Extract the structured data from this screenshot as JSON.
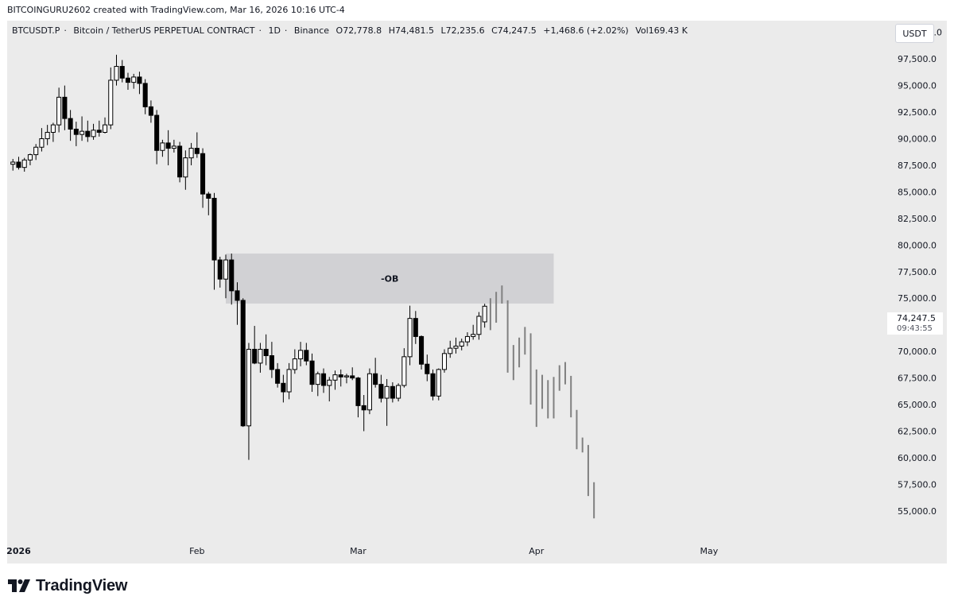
{
  "attribution": "BITCOINGURU2602 created with TradingView.com, Mar 16, 2026 10:16 UTC-4",
  "symbol": {
    "name": "BTCUSDT.P",
    "description": "Bitcoin / TetherUS PERPETUAL CONTRACT",
    "interval": "1D",
    "exchange": "Binance",
    "open": "O72,778.8",
    "high": "H74,481.5",
    "low": "L72,235.6",
    "close": "C74,247.5",
    "change": "+1,468.6 (+2.02%)",
    "volume": "Vol169.43 K"
  },
  "currency_button": "USDT",
  "last_price": {
    "price": "74,247.5",
    "countdown": "09:43:55"
  },
  "logo_text": "TradingView",
  "colors": {
    "background": "#ebebeb",
    "up_body": "#ffffff",
    "down_body": "#000000",
    "wick": "#000000",
    "projection": "#808080",
    "zone": "#d1d1d4"
  },
  "chart_data": {
    "type": "candlestick",
    "y_axis_ticks": [
      "100,000.0",
      "97,500.0",
      "95,000.0",
      "92,500.0",
      "90,000.0",
      "87,500.0",
      "85,000.0",
      "82,500.0",
      "80,000.0",
      "77,500.0",
      "75,000.0",
      "72,500.0",
      "70,000.0",
      "67,500.0",
      "65,000.0",
      "62,500.0",
      "60,000.0",
      "57,500.0",
      "55,000.0"
    ],
    "y_axis_values": [
      100000,
      97500,
      95000,
      92500,
      90000,
      87500,
      85000,
      82500,
      80000,
      77500,
      75000,
      72500,
      70000,
      67500,
      65000,
      62500,
      60000,
      57500,
      55000
    ],
    "ylim": [
      52300,
      101100
    ],
    "x_axis_labels": [
      {
        "label": "2026",
        "date": "2026-01-01",
        "bold": true
      },
      {
        "label": "Feb",
        "date": "2026-02-01"
      },
      {
        "label": "Mar",
        "date": "2026-03-01"
      },
      {
        "label": "Apr",
        "date": "2026-04-01"
      },
      {
        "label": "May",
        "date": "2026-05-01"
      }
    ],
    "xlim": [
      "2025-12-30",
      "2026-05-31"
    ],
    "candle_fields": [
      "date",
      "open",
      "high",
      "low",
      "close"
    ],
    "candles": [
      [
        "2025-12-31",
        87600,
        88100,
        87000,
        87800
      ],
      [
        "2026-01-01",
        87800,
        88300,
        87100,
        87300
      ],
      [
        "2026-01-02",
        87300,
        88200,
        86900,
        88000
      ],
      [
        "2026-01-03",
        88000,
        88600,
        87500,
        88500
      ],
      [
        "2026-01-04",
        88500,
        89500,
        88000,
        89200
      ],
      [
        "2026-01-05",
        89200,
        91000,
        88800,
        90000
      ],
      [
        "2026-01-06",
        90000,
        91300,
        89400,
        90600
      ],
      [
        "2026-01-07",
        90600,
        91500,
        89700,
        91300
      ],
      [
        "2026-01-08",
        91300,
        94800,
        90600,
        93900
      ],
      [
        "2026-01-09",
        93900,
        95000,
        90800,
        91900
      ],
      [
        "2026-01-10",
        91900,
        92700,
        89800,
        90900
      ],
      [
        "2026-01-11",
        90900,
        91600,
        89300,
        90400
      ],
      [
        "2026-01-12",
        90400,
        92100,
        89800,
        90700
      ],
      [
        "2026-01-13",
        90700,
        91700,
        89700,
        90200
      ],
      [
        "2026-01-14",
        90200,
        91400,
        89900,
        90800
      ],
      [
        "2026-01-15",
        90800,
        91700,
        90200,
        90600
      ],
      [
        "2026-01-16",
        90600,
        92000,
        90500,
        91300
      ],
      [
        "2026-01-17",
        91300,
        96700,
        90900,
        95500
      ],
      [
        "2026-01-18",
        95500,
        97900,
        95000,
        96800
      ],
      [
        "2026-01-19",
        96800,
        97400,
        95300,
        95700
      ],
      [
        "2026-01-20",
        95700,
        96200,
        94600,
        95300
      ],
      [
        "2026-01-21",
        95300,
        96100,
        94700,
        95800
      ],
      [
        "2026-01-22",
        95800,
        96300,
        94200,
        95200
      ],
      [
        "2026-01-23",
        95200,
        95600,
        92300,
        93000
      ],
      [
        "2026-01-24",
        93000,
        93600,
        91500,
        92200
      ],
      [
        "2026-01-25",
        92200,
        92700,
        87600,
        88900
      ],
      [
        "2026-01-26",
        88900,
        89900,
        88300,
        89600
      ],
      [
        "2026-01-27",
        89600,
        90800,
        87500,
        89100
      ],
      [
        "2026-01-28",
        89100,
        89900,
        88700,
        89300
      ],
      [
        "2026-01-29",
        89300,
        89700,
        85900,
        86400
      ],
      [
        "2026-01-30",
        86400,
        88900,
        85200,
        88200
      ],
      [
        "2026-01-31",
        88200,
        89600,
        87500,
        89100
      ],
      [
        "2026-02-01",
        89100,
        90600,
        88200,
        88600
      ],
      [
        "2026-02-02",
        88600,
        89100,
        83500,
        84800
      ],
      [
        "2026-02-03",
        84800,
        85000,
        82800,
        84400
      ],
      [
        "2026-02-04",
        84400,
        84900,
        75800,
        78600
      ],
      [
        "2026-02-05",
        78600,
        78900,
        76000,
        76800
      ],
      [
        "2026-02-06",
        76800,
        79100,
        75000,
        78600
      ],
      [
        "2026-02-07",
        78600,
        79200,
        74400,
        75700
      ],
      [
        "2026-02-08",
        75700,
        76500,
        72500,
        74800
      ],
      [
        "2026-02-09",
        74800,
        75000,
        62900,
        63000
      ],
      [
        "2026-02-10",
        63000,
        70800,
        59800,
        70200
      ],
      [
        "2026-02-11",
        70200,
        72400,
        68800,
        68900
      ],
      [
        "2026-02-12",
        68900,
        70800,
        68000,
        70200
      ],
      [
        "2026-02-13",
        70200,
        71600,
        68700,
        69600
      ],
      [
        "2026-02-14",
        69600,
        70900,
        67500,
        68300
      ],
      [
        "2026-02-15",
        68300,
        68900,
        66600,
        67000
      ],
      [
        "2026-02-16",
        67000,
        67800,
        65200,
        66200
      ],
      [
        "2026-02-17",
        66200,
        68900,
        65500,
        68300
      ],
      [
        "2026-02-18",
        68300,
        70200,
        67900,
        69300
      ],
      [
        "2026-02-19",
        69300,
        70900,
        68600,
        70100
      ],
      [
        "2026-02-20",
        70100,
        70800,
        68700,
        69100
      ],
      [
        "2026-02-21",
        69100,
        69800,
        66200,
        66900
      ],
      [
        "2026-02-22",
        66900,
        68100,
        65800,
        67900
      ],
      [
        "2026-02-23",
        67900,
        68400,
        66100,
        66800
      ],
      [
        "2026-02-24",
        66800,
        67600,
        65300,
        67300
      ],
      [
        "2026-02-25",
        67300,
        68200,
        66400,
        67800
      ],
      [
        "2026-02-26",
        67800,
        68300,
        66700,
        67600
      ],
      [
        "2026-02-27",
        67600,
        67900,
        67000,
        67700
      ],
      [
        "2026-02-28",
        67700,
        68500,
        67300,
        67500
      ],
      [
        "2026-03-01",
        67500,
        67600,
        63800,
        64900
      ],
      [
        "2026-03-02",
        64900,
        65900,
        62500,
        64500
      ],
      [
        "2026-03-03",
        64500,
        68400,
        64100,
        67900
      ],
      [
        "2026-03-04",
        67900,
        69400,
        66600,
        66900
      ],
      [
        "2026-03-05",
        66900,
        67800,
        65200,
        65600
      ],
      [
        "2026-03-06",
        65600,
        67400,
        63000,
        66700
      ],
      [
        "2026-03-07",
        66700,
        67100,
        65200,
        65600
      ],
      [
        "2026-03-08",
        65600,
        67000,
        65300,
        66800
      ],
      [
        "2026-03-09",
        66800,
        70300,
        66600,
        69500
      ],
      [
        "2026-03-10",
        69500,
        74300,
        68700,
        73100
      ],
      [
        "2026-03-11",
        73100,
        73800,
        70700,
        71400
      ],
      [
        "2026-03-12",
        71400,
        71500,
        68300,
        68800
      ],
      [
        "2026-03-13",
        68800,
        69700,
        67200,
        67900
      ],
      [
        "2026-03-14",
        67900,
        68300,
        65400,
        65800
      ],
      [
        "2026-03-15",
        65800,
        68400,
        65400,
        68300
      ],
      [
        "2026-03-16",
        68300,
        70200,
        68000,
        69800
      ],
      [
        "2026-03-17",
        69800,
        71000,
        69400,
        70300
      ],
      [
        "2026-03-18",
        70300,
        71300,
        69800,
        70500
      ],
      [
        "2026-03-19",
        70500,
        71200,
        70100,
        70900
      ],
      [
        "2026-03-20",
        70900,
        71800,
        70500,
        71400
      ],
      [
        "2026-03-21",
        71400,
        72500,
        71100,
        71600
      ],
      [
        "2026-03-22",
        71600,
        73700,
        71100,
        73300
      ],
      [
        "2026-03-23",
        72779,
        74482,
        72236,
        74248
      ]
    ],
    "projection_bars": [
      [
        "2026-03-24",
        72000,
        75000
      ],
      [
        "2026-03-25",
        72700,
        75600
      ],
      [
        "2026-03-26",
        74500,
        76200
      ],
      [
        "2026-03-27",
        68000,
        74800
      ],
      [
        "2026-03-28",
        67300,
        70600
      ],
      [
        "2026-03-29",
        68500,
        71300
      ],
      [
        "2026-03-30",
        69700,
        72300
      ],
      [
        "2026-03-31",
        65000,
        71700
      ],
      [
        "2026-04-01",
        62900,
        68300
      ],
      [
        "2026-04-02",
        64600,
        67800
      ],
      [
        "2026-04-03",
        63700,
        67300
      ],
      [
        "2026-04-04",
        63700,
        67600
      ],
      [
        "2026-04-05",
        66300,
        68700
      ],
      [
        "2026-04-06",
        66900,
        69000
      ],
      [
        "2026-04-07",
        63800,
        67700
      ],
      [
        "2026-04-08",
        60800,
        64500
      ],
      [
        "2026-04-09",
        60500,
        61900
      ],
      [
        "2026-04-10",
        56400,
        61200
      ],
      [
        "2026-04-11",
        54300,
        57700
      ]
    ],
    "zones": [
      {
        "label": "-OB",
        "start": "2026-02-06",
        "end": "2026-04-04",
        "top": 79200,
        "bottom": 74500
      }
    ],
    "grid": false,
    "last_price": 74247.5
  }
}
